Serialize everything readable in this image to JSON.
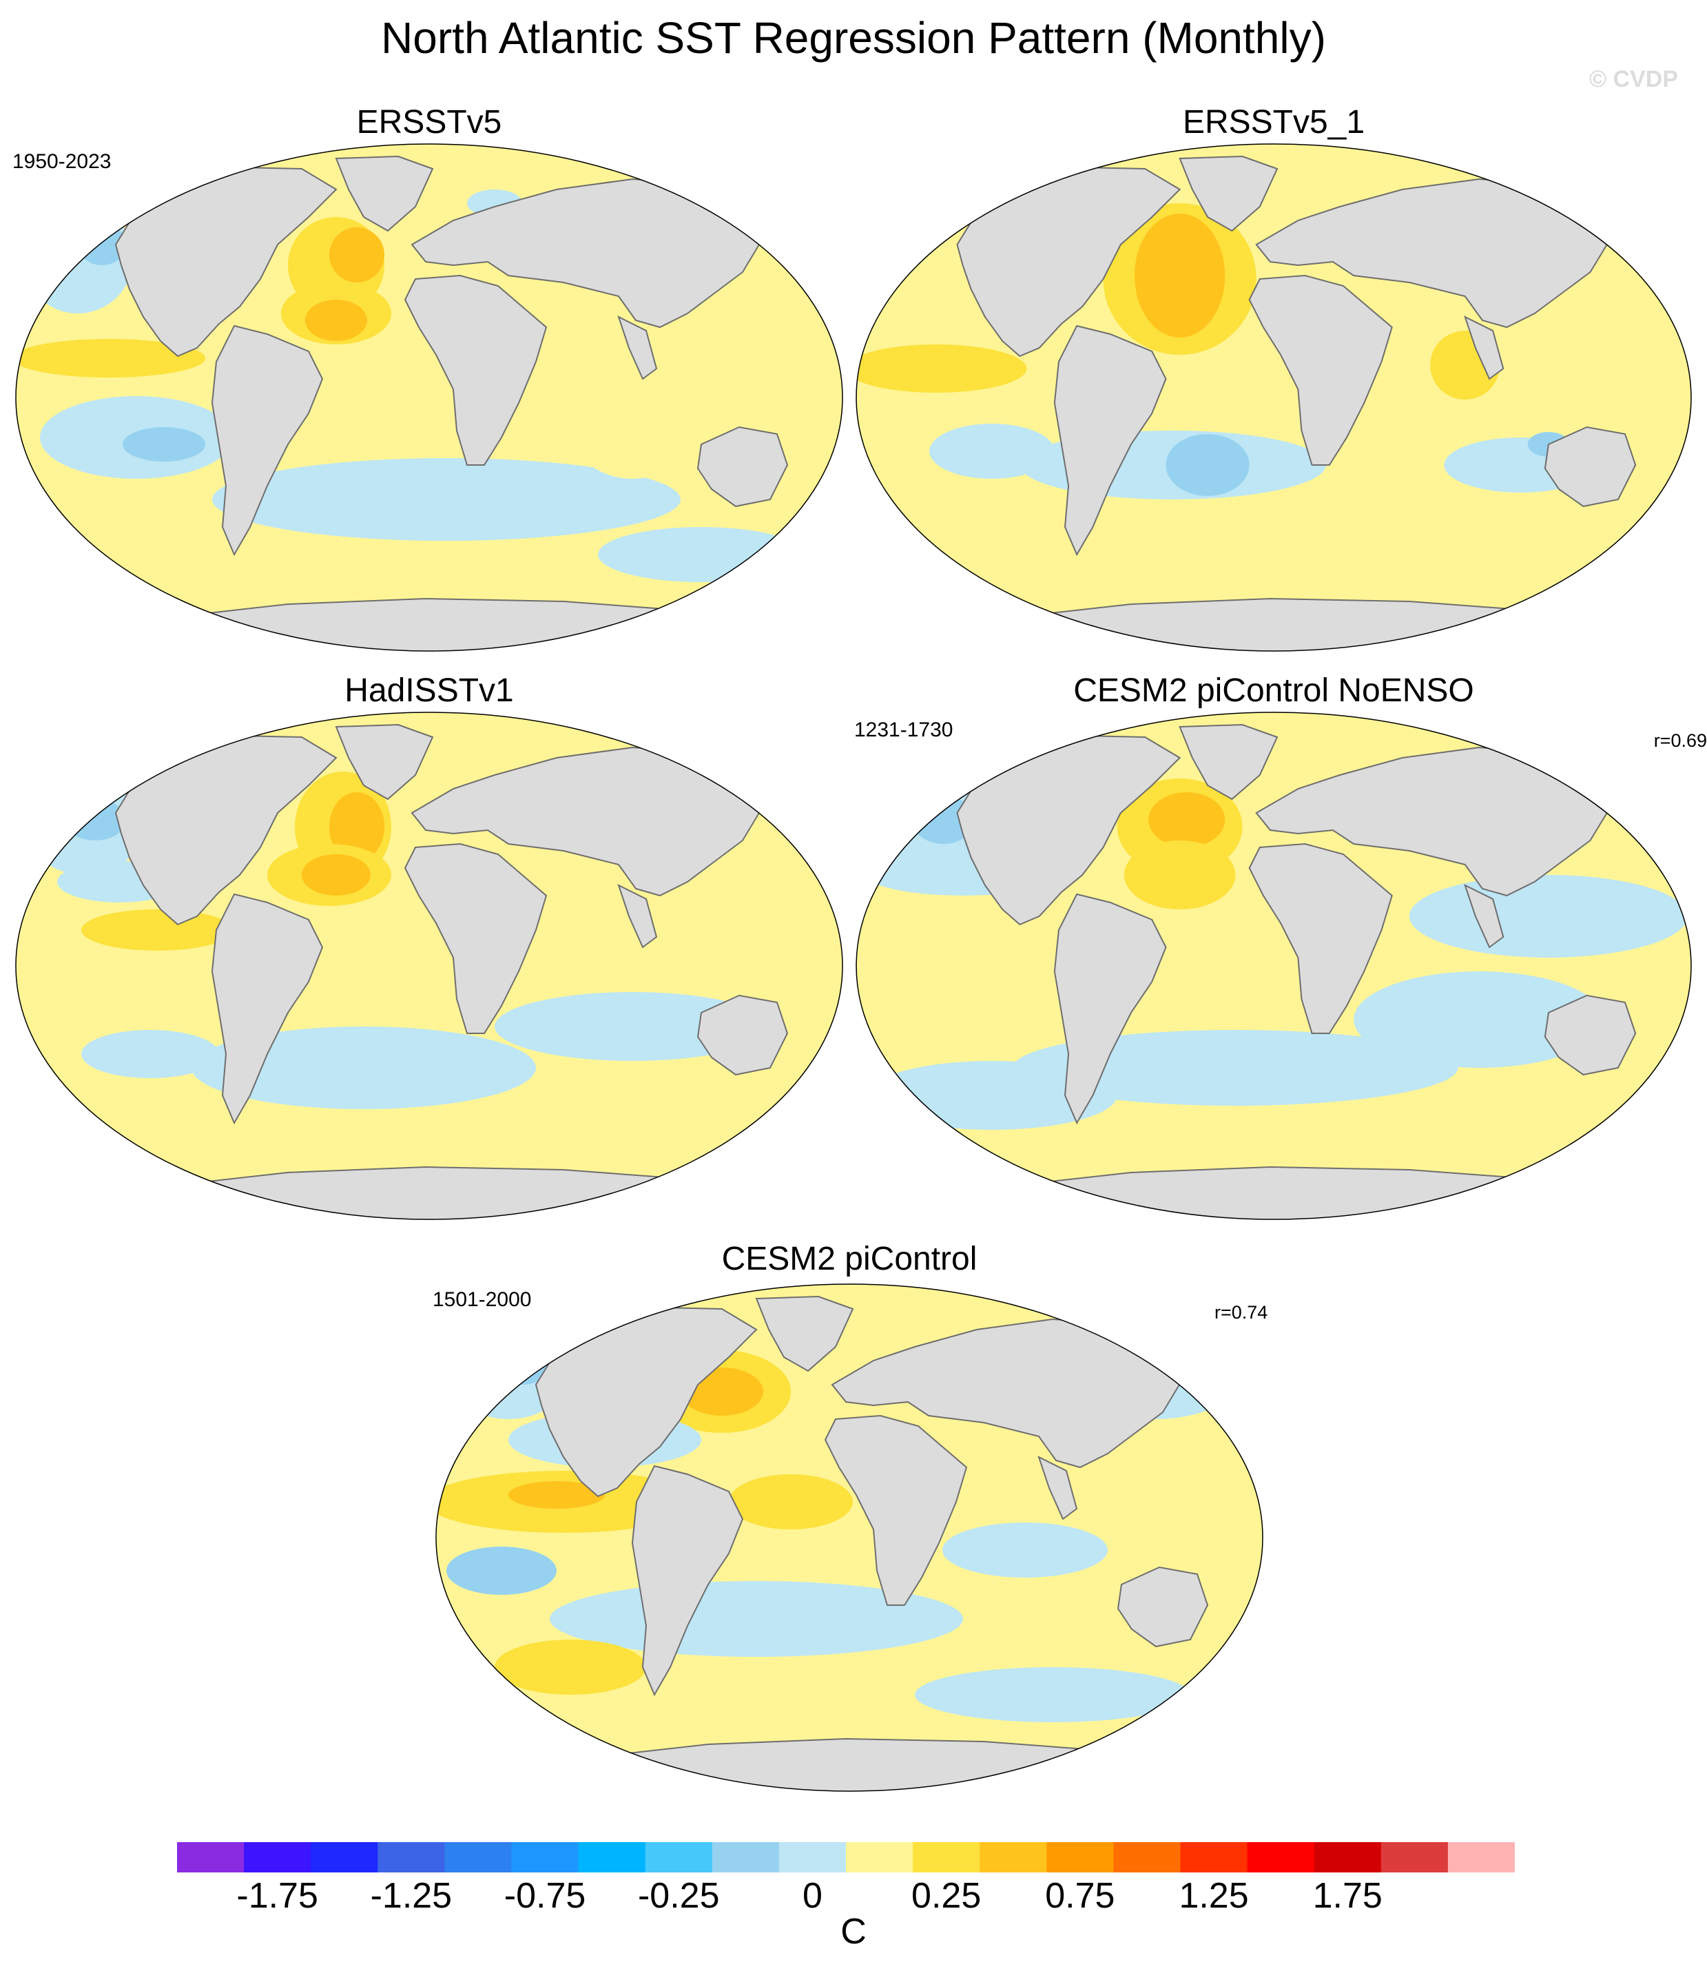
{
  "figure": {
    "title": "North Atlantic SST Regression Pattern (Monthly)",
    "watermark": "© CVDP"
  },
  "panels": [
    {
      "title": "ERSSTv5",
      "period": "1950-2023",
      "corr": ""
    },
    {
      "title": "ERSSTv5_1",
      "period": "",
      "corr": ""
    },
    {
      "title": "HadISSTv1",
      "period": "",
      "corr": ""
    },
    {
      "title": "CESM2 piControl NoENSO",
      "period": "1231-1730",
      "corr": "r=0.69"
    },
    {
      "title": "CESM2 piControl",
      "period": "1501-2000",
      "corr": "r=0.74"
    }
  ],
  "colorbar": {
    "units": "C",
    "tick_labels": [
      "-1.75",
      "-1.25",
      "-0.75",
      "-0.25",
      "0",
      "0.25",
      "0.75",
      "1.25",
      "1.75"
    ],
    "colors": [
      "#8a2be2",
      "#3c14ff",
      "#1e28ff",
      "#3c64e6",
      "#2d80f0",
      "#1e96ff",
      "#00b4ff",
      "#46c8fa",
      "#96d2f0",
      "#bee6f5",
      "#fff596",
      "#fde13c",
      "#ffc31e",
      "#ff9b00",
      "#ff6e00",
      "#ff3200",
      "#ff0000",
      "#d20000",
      "#dc3c3c",
      "#ffb4b4"
    ]
  },
  "palette": {
    "land": "#dcdcdc",
    "coast": "#6e6e6e",
    "ocean_base": "#fff596",
    "cool": "#bee6f5",
    "cool2": "#96d2f0",
    "cool3": "#46c8fa",
    "warm": "#fde13c",
    "warm2": "#ffc31e"
  }
}
